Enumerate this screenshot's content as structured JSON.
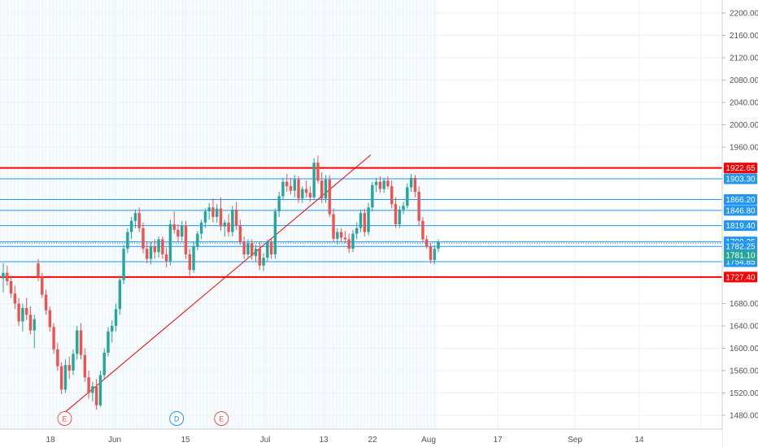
{
  "chart_data": {
    "type": "candlestick",
    "title": "",
    "xlabel": "",
    "ylabel": "",
    "ylim": [
      1460,
      2215
    ],
    "y_ticks": [
      "2200.00",
      "2160.00",
      "2120.00",
      "2080.00",
      "2040.00",
      "2000.00",
      "1960.00",
      "1680.00",
      "1640.00",
      "1600.00",
      "1560.00",
      "1520.00",
      "1480.00"
    ],
    "x_ticks": [
      "18",
      "Jun",
      "15",
      "Jul",
      "13",
      "22",
      "Aug",
      "17",
      "Sep",
      "14"
    ],
    "colors": {
      "up": "#26a69a",
      "down": "#ef5350",
      "level_blue": "#2196f3",
      "level_red": "#ff0000",
      "grid": "#eef1f5",
      "shade": "#e3f2fd"
    },
    "horizontal_levels": [
      {
        "price": 1922.65,
        "label": "1922.65",
        "color": "#ff0000",
        "thick": true
      },
      {
        "price": 1903.3,
        "label": "1903.30",
        "color": "#2196f3",
        "thick": false
      },
      {
        "price": 1866.2,
        "label": "1866.20",
        "color": "#2196f3",
        "thick": false
      },
      {
        "price": 1846.8,
        "label": "1846.80",
        "color": "#2196f3",
        "thick": false
      },
      {
        "price": 1819.4,
        "label": "1819.40",
        "color": "#2196f3",
        "thick": false
      },
      {
        "price": 1790.35,
        "label": "1790.35",
        "color": "#2196f3",
        "thick": false
      },
      {
        "price": 1782.25,
        "label": "1782.25",
        "color": "#2196f3",
        "thick": false
      },
      {
        "price": 1754.85,
        "label": "1754.85",
        "color": "#2196f3",
        "thick": false
      },
      {
        "price": 1727.4,
        "label": "1727.40",
        "color": "#ff0000",
        "thick": true
      }
    ],
    "price_tag": {
      "label": "1781.10",
      "color": "#26a69a"
    },
    "trendline": {
      "color": "#ff0000",
      "from": {
        "date": "May 26",
        "price": 1485
      },
      "to": {
        "date": "Sep 26",
        "price": 1946
      }
    },
    "events": [
      {
        "letter": "E",
        "date": "May 26",
        "color": "#ef5350"
      },
      {
        "letter": "D",
        "date": "Jul 10",
        "color": "#2196f3"
      },
      {
        "letter": "E",
        "date": "Jul 28",
        "color": "#ef5350"
      }
    ],
    "candles": [
      {
        "o": 1725,
        "h": 1752,
        "l": 1700,
        "c": 1735
      },
      {
        "o": 1735,
        "h": 1748,
        "l": 1712,
        "c": 1720
      },
      {
        "o": 1720,
        "h": 1730,
        "l": 1690,
        "c": 1698
      },
      {
        "o": 1698,
        "h": 1712,
        "l": 1670,
        "c": 1680
      },
      {
        "o": 1680,
        "h": 1690,
        "l": 1640,
        "c": 1648
      },
      {
        "o": 1648,
        "h": 1680,
        "l": 1630,
        "c": 1672
      },
      {
        "o": 1672,
        "h": 1690,
        "l": 1650,
        "c": 1660
      },
      {
        "o": 1660,
        "h": 1675,
        "l": 1625,
        "c": 1632
      },
      {
        "o": 1632,
        "h": 1660,
        "l": 1600,
        "c": 1652
      },
      {
        "o": 1752,
        "h": 1760,
        "l": 1720,
        "c": 1728
      },
      {
        "o": 1728,
        "h": 1735,
        "l": 1690,
        "c": 1696
      },
      {
        "o": 1696,
        "h": 1705,
        "l": 1660,
        "c": 1668
      },
      {
        "o": 1668,
        "h": 1675,
        "l": 1630,
        "c": 1638
      },
      {
        "o": 1638,
        "h": 1645,
        "l": 1590,
        "c": 1598
      },
      {
        "o": 1598,
        "h": 1610,
        "l": 1560,
        "c": 1568
      },
      {
        "o": 1568,
        "h": 1575,
        "l": 1518,
        "c": 1526
      },
      {
        "o": 1526,
        "h": 1580,
        "l": 1520,
        "c": 1570
      },
      {
        "o": 1570,
        "h": 1585,
        "l": 1545,
        "c": 1560
      },
      {
        "o": 1560,
        "h": 1598,
        "l": 1552,
        "c": 1590
      },
      {
        "o": 1590,
        "h": 1640,
        "l": 1580,
        "c": 1632
      },
      {
        "o": 1632,
        "h": 1645,
        "l": 1580,
        "c": 1588
      },
      {
        "o": 1588,
        "h": 1600,
        "l": 1540,
        "c": 1548
      },
      {
        "o": 1548,
        "h": 1560,
        "l": 1510,
        "c": 1520
      },
      {
        "o": 1520,
        "h": 1540,
        "l": 1505,
        "c": 1532
      },
      {
        "o": 1532,
        "h": 1545,
        "l": 1490,
        "c": 1498
      },
      {
        "o": 1498,
        "h": 1560,
        "l": 1495,
        "c": 1552
      },
      {
        "o": 1552,
        "h": 1600,
        "l": 1545,
        "c": 1592
      },
      {
        "o": 1592,
        "h": 1638,
        "l": 1585,
        "c": 1630
      },
      {
        "o": 1630,
        "h": 1650,
        "l": 1610,
        "c": 1640
      },
      {
        "o": 1640,
        "h": 1680,
        "l": 1630,
        "c": 1670
      },
      {
        "o": 1670,
        "h": 1730,
        "l": 1660,
        "c": 1722
      },
      {
        "o": 1722,
        "h": 1785,
        "l": 1715,
        "c": 1778
      },
      {
        "o": 1778,
        "h": 1815,
        "l": 1770,
        "c": 1808
      },
      {
        "o": 1808,
        "h": 1835,
        "l": 1795,
        "c": 1828
      },
      {
        "o": 1828,
        "h": 1848,
        "l": 1815,
        "c": 1842
      },
      {
        "o": 1842,
        "h": 1852,
        "l": 1808,
        "c": 1815
      },
      {
        "o": 1815,
        "h": 1825,
        "l": 1770,
        "c": 1778
      },
      {
        "o": 1778,
        "h": 1790,
        "l": 1752,
        "c": 1760
      },
      {
        "o": 1760,
        "h": 1790,
        "l": 1750,
        "c": 1782
      },
      {
        "o": 1782,
        "h": 1795,
        "l": 1760,
        "c": 1772
      },
      {
        "o": 1772,
        "h": 1800,
        "l": 1762,
        "c": 1795
      },
      {
        "o": 1795,
        "h": 1800,
        "l": 1760,
        "c": 1768
      },
      {
        "o": 1768,
        "h": 1780,
        "l": 1745,
        "c": 1756
      },
      {
        "o": 1756,
        "h": 1830,
        "l": 1748,
        "c": 1822
      },
      {
        "o": 1822,
        "h": 1845,
        "l": 1805,
        "c": 1812
      },
      {
        "o": 1812,
        "h": 1822,
        "l": 1790,
        "c": 1800
      },
      {
        "o": 1800,
        "h": 1828,
        "l": 1792,
        "c": 1820
      },
      {
        "o": 1820,
        "h": 1828,
        "l": 1760,
        "c": 1768
      },
      {
        "o": 1768,
        "h": 1778,
        "l": 1730,
        "c": 1740
      },
      {
        "o": 1740,
        "h": 1790,
        "l": 1735,
        "c": 1782
      },
      {
        "o": 1782,
        "h": 1810,
        "l": 1775,
        "c": 1805
      },
      {
        "o": 1805,
        "h": 1830,
        "l": 1795,
        "c": 1825
      },
      {
        "o": 1825,
        "h": 1850,
        "l": 1815,
        "c": 1845
      },
      {
        "o": 1845,
        "h": 1860,
        "l": 1830,
        "c": 1852
      },
      {
        "o": 1852,
        "h": 1868,
        "l": 1825,
        "c": 1835
      },
      {
        "o": 1835,
        "h": 1858,
        "l": 1825,
        "c": 1850
      },
      {
        "o": 1850,
        "h": 1870,
        "l": 1810,
        "c": 1818
      },
      {
        "o": 1818,
        "h": 1830,
        "l": 1800,
        "c": 1825
      },
      {
        "o": 1825,
        "h": 1840,
        "l": 1800,
        "c": 1808
      },
      {
        "o": 1808,
        "h": 1855,
        "l": 1800,
        "c": 1848
      },
      {
        "o": 1848,
        "h": 1862,
        "l": 1812,
        "c": 1820
      },
      {
        "o": 1820,
        "h": 1830,
        "l": 1785,
        "c": 1790
      },
      {
        "o": 1790,
        "h": 1800,
        "l": 1760,
        "c": 1768
      },
      {
        "o": 1768,
        "h": 1795,
        "l": 1760,
        "c": 1788
      },
      {
        "o": 1788,
        "h": 1795,
        "l": 1758,
        "c": 1765
      },
      {
        "o": 1765,
        "h": 1785,
        "l": 1755,
        "c": 1778
      },
      {
        "o": 1778,
        "h": 1790,
        "l": 1740,
        "c": 1748
      },
      {
        "o": 1748,
        "h": 1770,
        "l": 1738,
        "c": 1762
      },
      {
        "o": 1762,
        "h": 1795,
        "l": 1755,
        "c": 1790
      },
      {
        "o": 1790,
        "h": 1798,
        "l": 1760,
        "c": 1768
      },
      {
        "o": 1768,
        "h": 1850,
        "l": 1760,
        "c": 1845
      },
      {
        "o": 1845,
        "h": 1880,
        "l": 1835,
        "c": 1872
      },
      {
        "o": 1872,
        "h": 1905,
        "l": 1865,
        "c": 1898
      },
      {
        "o": 1898,
        "h": 1912,
        "l": 1880,
        "c": 1890
      },
      {
        "o": 1890,
        "h": 1905,
        "l": 1875,
        "c": 1882
      },
      {
        "o": 1882,
        "h": 1910,
        "l": 1870,
        "c": 1902
      },
      {
        "o": 1902,
        "h": 1908,
        "l": 1860,
        "c": 1868
      },
      {
        "o": 1868,
        "h": 1890,
        "l": 1860,
        "c": 1885
      },
      {
        "o": 1885,
        "h": 1900,
        "l": 1870,
        "c": 1878
      },
      {
        "o": 1878,
        "h": 1890,
        "l": 1862,
        "c": 1870
      },
      {
        "o": 1870,
        "h": 1940,
        "l": 1865,
        "c": 1932
      },
      {
        "o": 1932,
        "h": 1945,
        "l": 1895,
        "c": 1900
      },
      {
        "o": 1900,
        "h": 1915,
        "l": 1860,
        "c": 1868
      },
      {
        "o": 1868,
        "h": 1910,
        "l": 1860,
        "c": 1902
      },
      {
        "o": 1902,
        "h": 1910,
        "l": 1835,
        "c": 1840
      },
      {
        "o": 1840,
        "h": 1850,
        "l": 1790,
        "c": 1796
      },
      {
        "o": 1796,
        "h": 1815,
        "l": 1785,
        "c": 1808
      },
      {
        "o": 1808,
        "h": 1815,
        "l": 1790,
        "c": 1798
      },
      {
        "o": 1798,
        "h": 1810,
        "l": 1788,
        "c": 1795
      },
      {
        "o": 1795,
        "h": 1805,
        "l": 1770,
        "c": 1778
      },
      {
        "o": 1778,
        "h": 1812,
        "l": 1772,
        "c": 1805
      },
      {
        "o": 1805,
        "h": 1825,
        "l": 1795,
        "c": 1815
      },
      {
        "o": 1815,
        "h": 1848,
        "l": 1808,
        "c": 1842
      },
      {
        "o": 1842,
        "h": 1850,
        "l": 1800,
        "c": 1808
      },
      {
        "o": 1808,
        "h": 1860,
        "l": 1802,
        "c": 1852
      },
      {
        "o": 1852,
        "h": 1898,
        "l": 1845,
        "c": 1892
      },
      {
        "o": 1892,
        "h": 1905,
        "l": 1880,
        "c": 1898
      },
      {
        "o": 1898,
        "h": 1908,
        "l": 1878,
        "c": 1885
      },
      {
        "o": 1885,
        "h": 1905,
        "l": 1878,
        "c": 1900
      },
      {
        "o": 1900,
        "h": 1908,
        "l": 1885,
        "c": 1890
      },
      {
        "o": 1890,
        "h": 1900,
        "l": 1850,
        "c": 1858
      },
      {
        "o": 1858,
        "h": 1870,
        "l": 1815,
        "c": 1822
      },
      {
        "o": 1822,
        "h": 1855,
        "l": 1815,
        "c": 1848
      },
      {
        "o": 1848,
        "h": 1862,
        "l": 1840,
        "c": 1855
      },
      {
        "o": 1855,
        "h": 1895,
        "l": 1850,
        "c": 1888
      },
      {
        "o": 1888,
        "h": 1912,
        "l": 1880,
        "c": 1905
      },
      {
        "o": 1905,
        "h": 1910,
        "l": 1870,
        "c": 1880
      },
      {
        "o": 1880,
        "h": 1890,
        "l": 1820,
        "c": 1828
      },
      {
        "o": 1828,
        "h": 1835,
        "l": 1790,
        "c": 1795
      },
      {
        "o": 1795,
        "h": 1802,
        "l": 1778,
        "c": 1782
      },
      {
        "o": 1782,
        "h": 1788,
        "l": 1752,
        "c": 1758
      },
      {
        "o": 1758,
        "h": 1785,
        "l": 1750,
        "c": 1778
      },
      {
        "o": 1778,
        "h": 1795,
        "l": 1772,
        "c": 1790
      }
    ]
  }
}
